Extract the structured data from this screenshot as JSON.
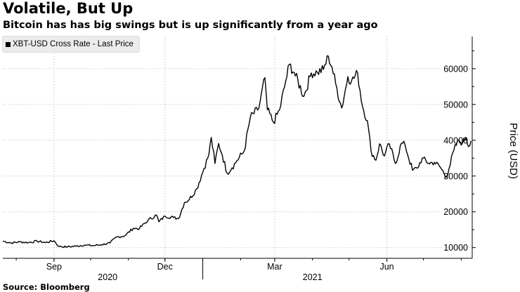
{
  "title": "Volatile, But Up",
  "subtitle": "Bitcoin has has big swings but is up significantly from a year ago",
  "source": "Source: Bloomberg",
  "chart_data": {
    "type": "line",
    "ylabel": "Price (USD)",
    "ylim": [
      7000,
      69000
    ],
    "yticks": [
      10000,
      20000,
      30000,
      40000,
      50000,
      60000
    ],
    "ytick_labels": [
      "10000",
      "20000",
      "30000",
      "40000",
      "50000",
      "60000"
    ],
    "y_axis_position": "right",
    "grid": true,
    "grid_style": "dotted",
    "xlim": [
      "2020-07-21",
      "2021-08-10"
    ],
    "month_ticks": [
      {
        "label": "Sep",
        "date": "2020-09-01"
      },
      {
        "label": "Dec",
        "date": "2020-12-01"
      },
      {
        "label": "Mar",
        "date": "2021-03-01"
      },
      {
        "label": "Jun",
        "date": "2021-06-01"
      }
    ],
    "year_labels": [
      {
        "label": "2020",
        "date": "2020-10-15"
      },
      {
        "label": "2021",
        "date": "2021-04-01"
      }
    ],
    "year_dividers": [
      "2021-01-01"
    ],
    "legend_position": "top-left",
    "colors": {
      "line": "#000000",
      "grid": "#b3b3b3",
      "legend_bg": "#ececec"
    },
    "series": [
      {
        "name": "XBT-USD Cross Rate - Last Price",
        "points": [
          [
            "2020-07-21",
            11800
          ],
          [
            "2020-07-28",
            11300
          ],
          [
            "2020-08-04",
            11600
          ],
          [
            "2020-08-11",
            11400
          ],
          [
            "2020-08-18",
            11800
          ],
          [
            "2020-08-25",
            11400
          ],
          [
            "2020-09-01",
            11900
          ],
          [
            "2020-09-05",
            10300
          ],
          [
            "2020-09-12",
            10200
          ],
          [
            "2020-09-19",
            10400
          ],
          [
            "2020-09-26",
            10700
          ],
          [
            "2020-10-03",
            10550
          ],
          [
            "2020-10-10",
            10800
          ],
          [
            "2020-10-17",
            11300
          ],
          [
            "2020-10-22",
            12900
          ],
          [
            "2020-10-29",
            13300
          ],
          [
            "2020-11-05",
            15400
          ],
          [
            "2020-11-10",
            15300
          ],
          [
            "2020-11-17",
            17600
          ],
          [
            "2020-11-24",
            19100
          ],
          [
            "2020-11-26",
            17200
          ],
          [
            "2020-12-01",
            18800
          ],
          [
            "2020-12-08",
            18400
          ],
          [
            "2020-12-12",
            18100
          ],
          [
            "2020-12-17",
            22600
          ],
          [
            "2020-12-21",
            23500
          ],
          [
            "2020-12-27",
            26400
          ],
          [
            "2021-01-02",
            32100
          ],
          [
            "2021-01-06",
            36000
          ],
          [
            "2021-01-08",
            40800
          ],
          [
            "2021-01-11",
            33500
          ],
          [
            "2021-01-14",
            39100
          ],
          [
            "2021-01-17",
            35900
          ],
          [
            "2021-01-21",
            30800
          ],
          [
            "2021-01-25",
            32300
          ],
          [
            "2021-01-29",
            34300
          ],
          [
            "2021-02-04",
            37000
          ],
          [
            "2021-02-09",
            46400
          ],
          [
            "2021-02-16",
            49000
          ],
          [
            "2021-02-21",
            57500
          ],
          [
            "2021-02-23",
            48500
          ],
          [
            "2021-02-28",
            45000
          ],
          [
            "2021-03-05",
            48500
          ],
          [
            "2021-03-09",
            54800
          ],
          [
            "2021-03-13",
            61200
          ],
          [
            "2021-03-17",
            58900
          ],
          [
            "2021-03-25",
            52300
          ],
          [
            "2021-03-31",
            58800
          ],
          [
            "2021-04-05",
            59000
          ],
          [
            "2021-04-10",
            59800
          ],
          [
            "2021-04-14",
            63500
          ],
          [
            "2021-04-17",
            60400
          ],
          [
            "2021-04-20",
            55800
          ],
          [
            "2021-04-25",
            49000
          ],
          [
            "2021-04-30",
            57800
          ],
          [
            "2021-05-03",
            56500
          ],
          [
            "2021-05-08",
            58800
          ],
          [
            "2021-05-12",
            49500
          ],
          [
            "2021-05-16",
            45500
          ],
          [
            "2021-05-19",
            37000
          ],
          [
            "2021-05-23",
            34400
          ],
          [
            "2021-05-26",
            39000
          ],
          [
            "2021-05-30",
            35600
          ],
          [
            "2021-06-03",
            39000
          ],
          [
            "2021-06-08",
            33500
          ],
          [
            "2021-06-13",
            39200
          ],
          [
            "2021-06-16",
            38600
          ],
          [
            "2021-06-22",
            31600
          ],
          [
            "2021-06-26",
            32200
          ],
          [
            "2021-06-30",
            35000
          ],
          [
            "2021-07-05",
            33600
          ],
          [
            "2021-07-10",
            33800
          ],
          [
            "2021-07-14",
            32800
          ],
          [
            "2021-07-20",
            29800
          ],
          [
            "2021-07-22",
            32100
          ],
          [
            "2021-07-26",
            37300
          ],
          [
            "2021-07-30",
            40000
          ],
          [
            "2021-08-02",
            39200
          ],
          [
            "2021-08-05",
            40800
          ],
          [
            "2021-08-07",
            38200
          ],
          [
            "2021-08-09",
            39800
          ]
        ]
      }
    ]
  }
}
